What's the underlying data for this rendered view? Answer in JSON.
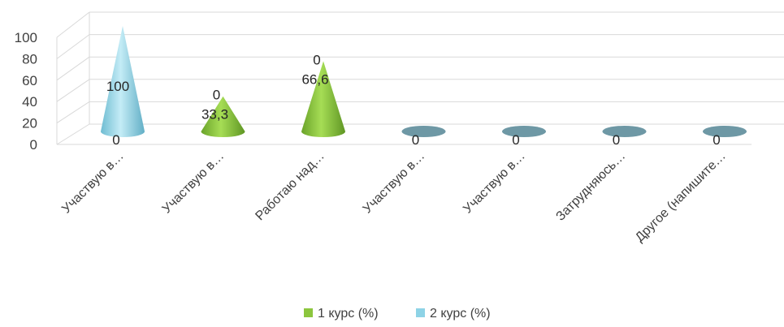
{
  "chart_data": {
    "type": "bar",
    "shape": "3d-cone",
    "categories": [
      "Участвую в…",
      "Участвую в…",
      "Работаю над…",
      "Участвую в…",
      "Участвую в…",
      "Затрудняюсь…",
      "Другое (напишите…"
    ],
    "series": [
      {
        "name": "1 курс (%)",
        "values": [
          0,
          33.3,
          66.6,
          0,
          0,
          0,
          0
        ],
        "labels": [
          "0",
          "33,3",
          "66,6",
          "0",
          "0",
          "0",
          "0"
        ],
        "color": "#8cc63e"
      },
      {
        "name": "2 курс (%)",
        "values": [
          100,
          0,
          0,
          0,
          0,
          0,
          0
        ],
        "labels": [
          "100",
          "0",
          "0",
          "0",
          "0",
          "0",
          "0"
        ],
        "color": "#8ed3e6"
      }
    ],
    "ylim": [
      0,
      100
    ],
    "yticks": [
      "0",
      "20",
      "40",
      "60",
      "80",
      "100"
    ],
    "grid": true,
    "legend": "bottom"
  }
}
